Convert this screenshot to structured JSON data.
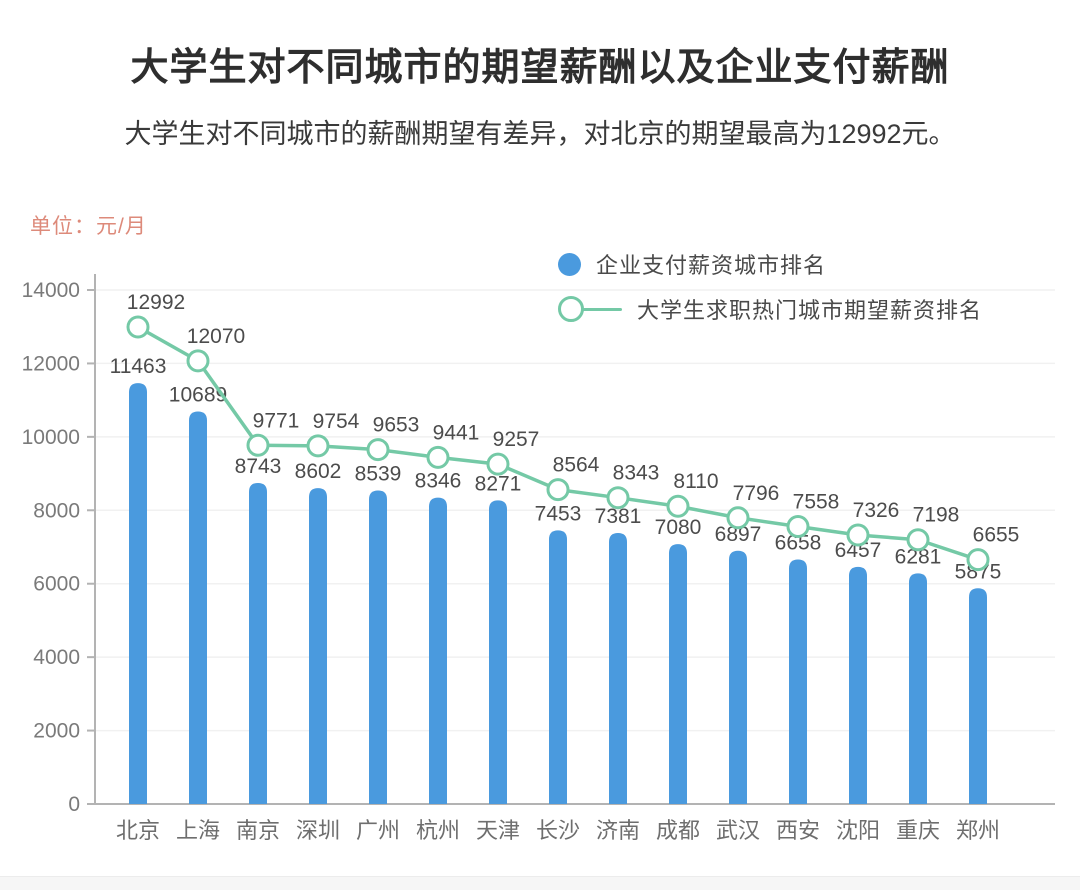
{
  "header": {
    "title": "大学生对不同城市的期望薪酬以及企业支付薪酬",
    "subtitle": "大学生对不同城市的薪酬期望有差异，对北京的期望最高为12992元。"
  },
  "chart": {
    "unit_label": "单位：元/月"
  },
  "legend": {
    "items": [
      {
        "label": "企业支付薪资城市排名",
        "marker": "filled-circle",
        "color": "#4a9ade"
      },
      {
        "label": "大学生求职热门城市期望薪资排名",
        "marker": "open-circle-on-line",
        "color": "#74c9a6"
      }
    ]
  },
  "colors": {
    "bar": "#4a9ade",
    "line": "#74c9a6",
    "unit_text": "#dd8a7a",
    "value_label": "#4c4c4c",
    "axis": "#b3b3b3",
    "tick_label": "#7a7a7a",
    "city_label": "#6e6e6e",
    "gridline": "#f1f1f1"
  },
  "chart_data": {
    "type": "bar",
    "title": "大学生对不同城市的期望薪酬以及企业支付薪酬",
    "categories": [
      "北京",
      "上海",
      "南京",
      "深圳",
      "广州",
      "杭州",
      "天津",
      "长沙",
      "济南",
      "成都",
      "武汉",
      "西安",
      "沈阳",
      "重庆",
      "郑州"
    ],
    "series": [
      {
        "name": "企业支付薪资城市排名",
        "type": "bar",
        "color": "#4a9ade",
        "values": [
          11463,
          10689,
          8743,
          8602,
          8539,
          8346,
          8271,
          7453,
          7381,
          7080,
          6897,
          6658,
          6457,
          6281,
          5875
        ]
      },
      {
        "name": "大学生求职热门城市期望薪资排名",
        "type": "line",
        "color": "#74c9a6",
        "values": [
          12992,
          12070,
          9771,
          9754,
          9653,
          9441,
          9257,
          8564,
          8343,
          8110,
          7796,
          7558,
          7326,
          7198,
          6655
        ]
      }
    ],
    "xlabel": "",
    "ylabel": "元/月",
    "ylim": [
      0,
      14000
    ],
    "yticks": [
      0,
      2000,
      4000,
      6000,
      8000,
      10000,
      12000,
      14000
    ],
    "grid": true,
    "legend_position": "top-right"
  }
}
